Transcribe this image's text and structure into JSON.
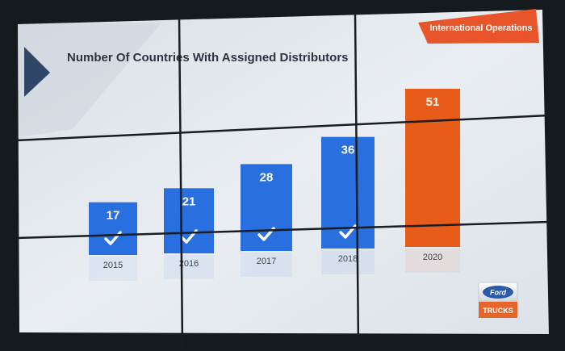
{
  "banner": {
    "label": "International Operations",
    "color": "#e8552a"
  },
  "logo": {
    "brand": "Ford",
    "sub": "TRUCKS",
    "brand_color": "#2a5aa8",
    "sub_color": "#e8652a"
  },
  "colors": {
    "bar_past": "#2a6fe0",
    "bar_future": "#e85c1a",
    "title": "#2b3442",
    "label": "#3c4450"
  },
  "chart_data": {
    "type": "bar",
    "title": "Number Of Countries With Assigned Distributors",
    "categories": [
      "2015",
      "2016",
      "2017",
      "2018",
      "2020"
    ],
    "values": [
      17,
      21,
      28,
      36,
      51
    ],
    "data_labels": [
      "17",
      "21",
      "28",
      "36",
      "51"
    ],
    "checked": [
      true,
      true,
      true,
      true,
      false
    ],
    "highlight_index": 4,
    "xlabel": "",
    "ylabel": "",
    "ylim": [
      0,
      51
    ],
    "grid": false,
    "legend": "none"
  }
}
